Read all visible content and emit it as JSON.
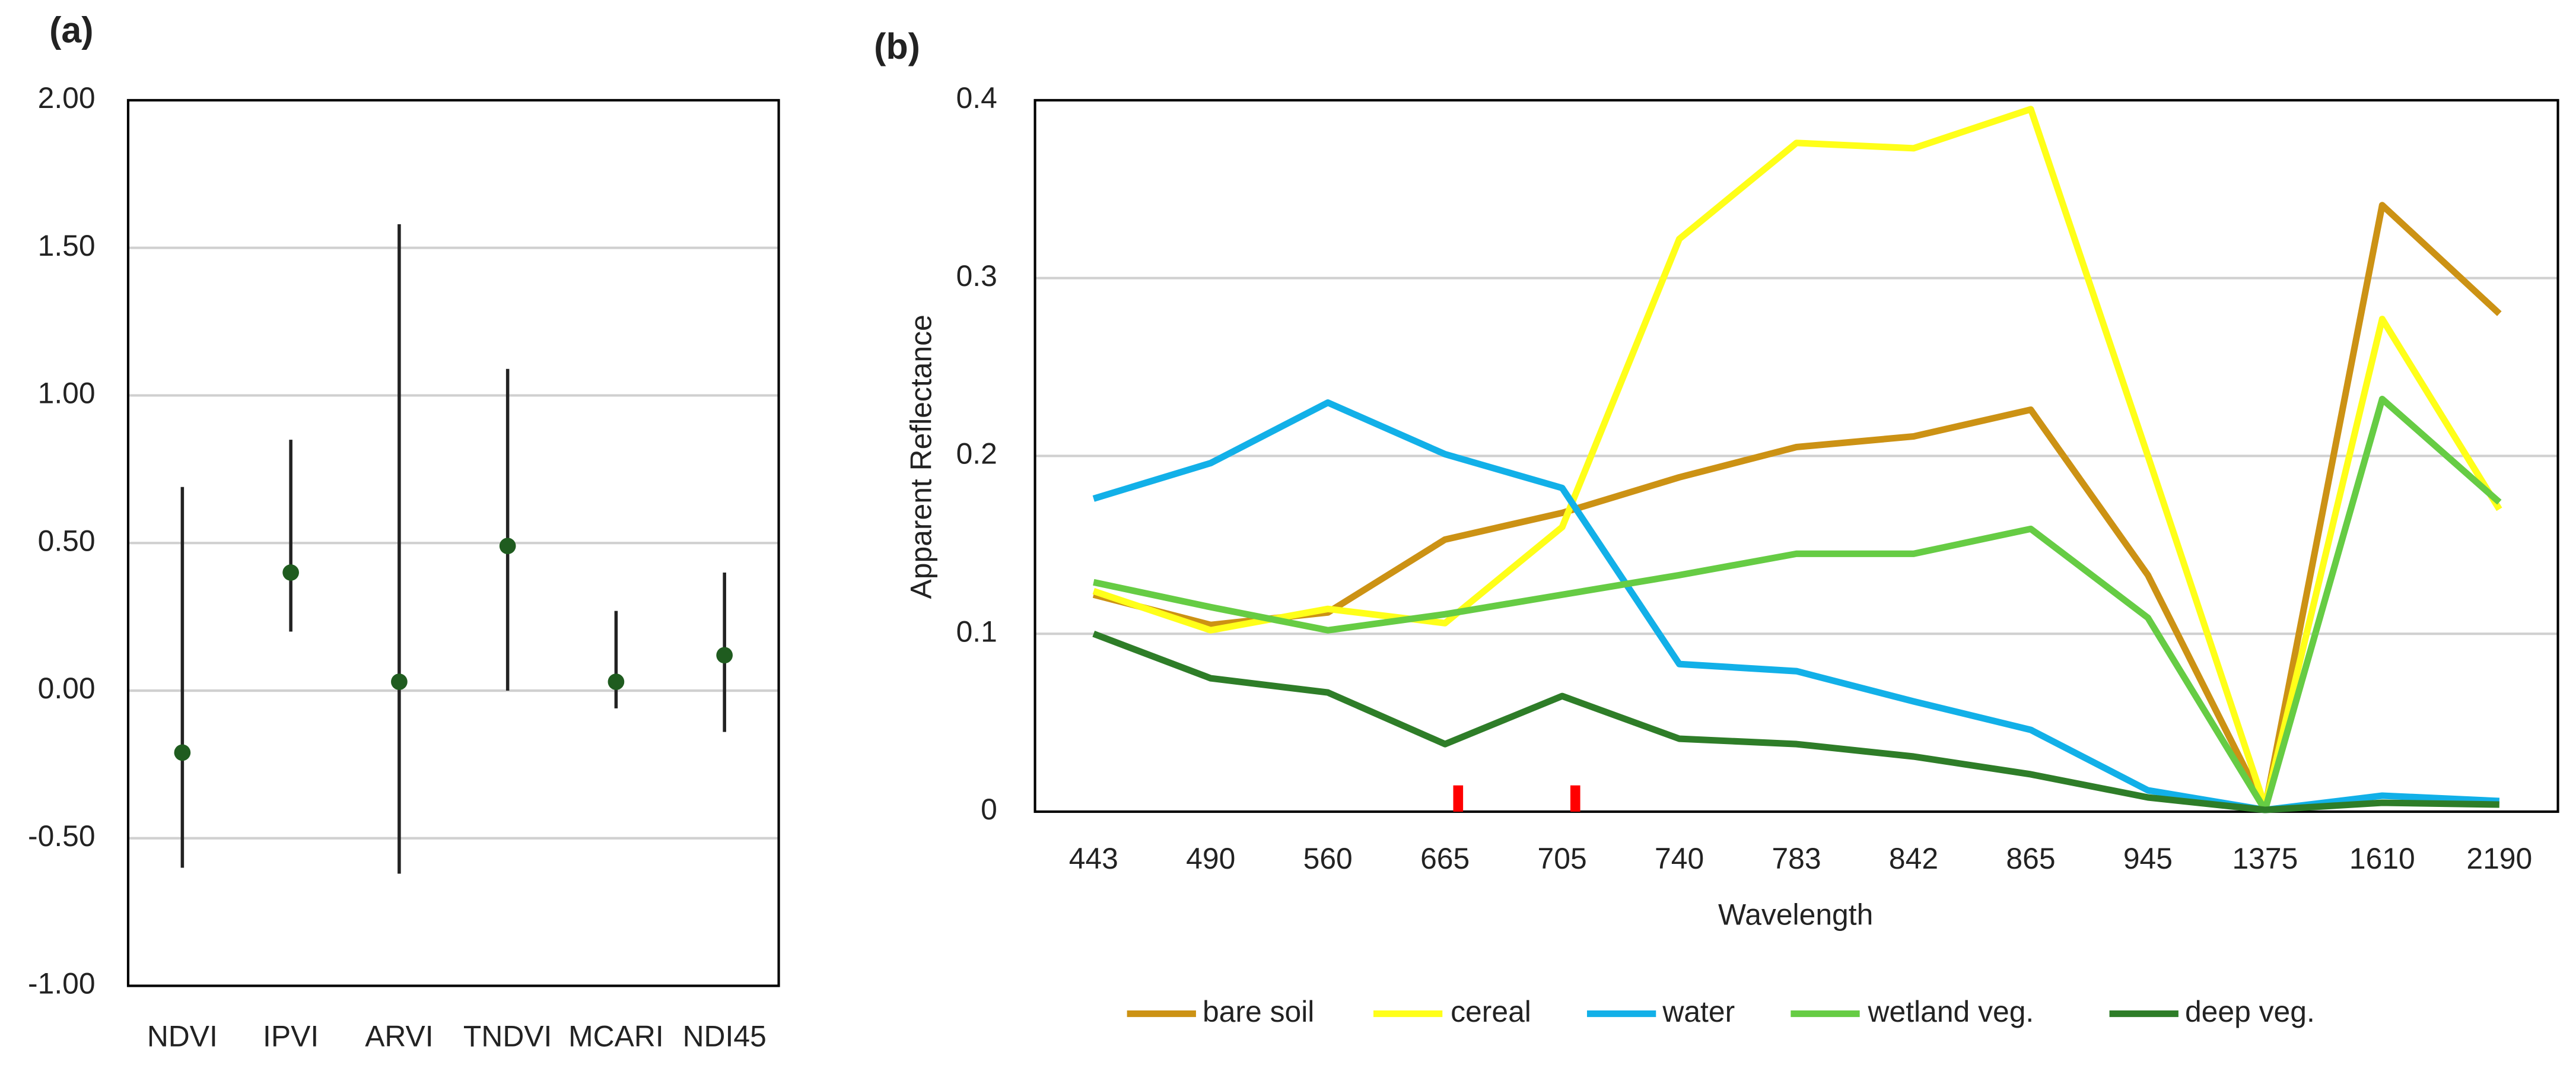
{
  "chart_data": [
    {
      "type": "errorbar",
      "title": "(a)",
      "categories": [
        "NDVI",
        "IPVI",
        "ARVI",
        "TNDVI",
        "MCARI",
        "NDI45"
      ],
      "values": [
        -0.21,
        0.4,
        0.03,
        0.49,
        0.03,
        0.12
      ],
      "low": [
        -0.6,
        0.2,
        -0.62,
        0.0,
        -0.06,
        -0.14
      ],
      "high": [
        0.69,
        0.85,
        1.58,
        1.09,
        0.27,
        0.4
      ],
      "color": "#1f5c1f",
      "ylim": [
        -1,
        2
      ],
      "yticks": [
        {
          "value": -1,
          "label": "-1.00"
        },
        {
          "value": -0.5,
          "label": "-0.50"
        },
        {
          "value": 0,
          "label": "0.00"
        },
        {
          "value": 0.5,
          "label": "0.50"
        },
        {
          "value": 1,
          "label": "1.00"
        },
        {
          "value": 1.5,
          "label": "1.50"
        },
        {
          "value": 2,
          "label": "2.00"
        }
      ],
      "grid": true
    },
    {
      "type": "line",
      "title": "(b)",
      "x_label": "Wavelength",
      "y_label": "Apparent Reflectance",
      "categories": [
        "443",
        "490",
        "560",
        "665",
        "705",
        "740",
        "783",
        "842",
        "865",
        "945",
        "1375",
        "1610",
        "2190"
      ],
      "series": [
        {
          "name": "bare soil",
          "color": "#cc9214",
          "values": [
            0.122,
            0.105,
            0.112,
            0.153,
            0.168,
            0.188,
            0.205,
            0.211,
            0.226,
            0.133,
            0.002,
            0.341,
            0.28
          ]
        },
        {
          "name": "cereal",
          "color": "#ffff19",
          "values": [
            0.124,
            0.102,
            0.114,
            0.106,
            0.16,
            0.322,
            0.376,
            0.373,
            0.395,
            0.2,
            0.003,
            0.277,
            0.17
          ]
        },
        {
          "name": "water",
          "color": "#12b0e8",
          "values": [
            0.176,
            0.196,
            0.23,
            0.201,
            0.182,
            0.083,
            0.079,
            0.062,
            0.046,
            0.012,
            0.001,
            0.009,
            0.006
          ]
        },
        {
          "name": "wetland veg.",
          "color": "#66cc44",
          "values": [
            0.129,
            0.115,
            0.102,
            0.111,
            0.122,
            0.133,
            0.145,
            0.145,
            0.159,
            0.109,
            0.001,
            0.232,
            0.174
          ]
        },
        {
          "name": "deep veg.",
          "color": "#2e7d28",
          "values": [
            0.1,
            0.075,
            0.067,
            0.038,
            0.065,
            0.041,
            0.038,
            0.031,
            0.021,
            0.008,
            0.001,
            0.005,
            0.004
          ]
        }
      ],
      "ylim": [
        0,
        0.4
      ],
      "yticks": [
        0,
        0.1,
        0.2,
        0.3,
        0.4
      ],
      "grid": true,
      "legend": "bottom"
    }
  ]
}
